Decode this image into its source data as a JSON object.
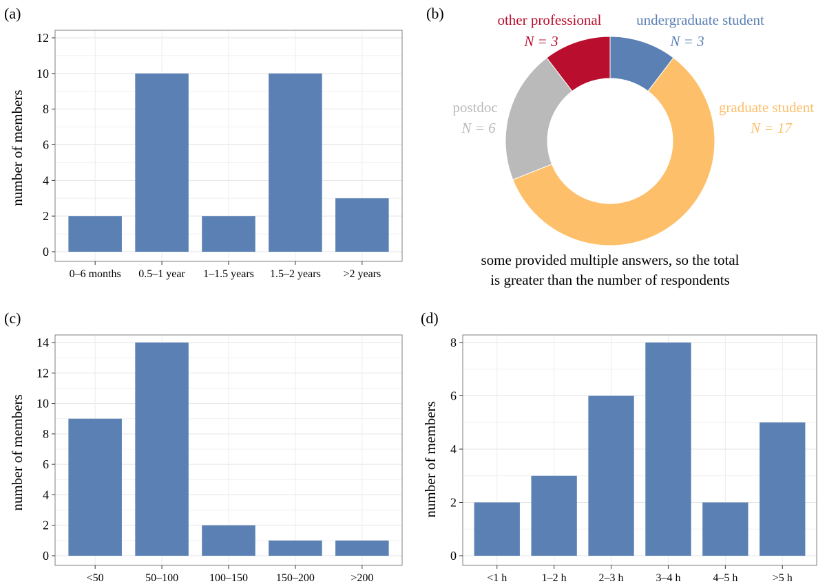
{
  "chart_data": [
    {
      "panel": "(a)",
      "type": "bar",
      "categories": [
        "0–6 months",
        "0.5–1 year",
        "1–1.5 years",
        "1.5–2 years",
        ">2 years"
      ],
      "values": [
        2,
        10,
        2,
        10,
        3
      ],
      "ylabel": "number of members",
      "ylim": [
        0,
        12
      ],
      "yticks": [
        "0",
        "2",
        "4",
        "6",
        "8",
        "10",
        "12"
      ],
      "grid": true,
      "bar_color": "#5b80b4"
    },
    {
      "panel": "(b)",
      "type": "pie",
      "variant": "donut",
      "slices": [
        {
          "label": "undergraduate student",
          "n_text": "N = 3",
          "value": 3,
          "color": "#5b80b4"
        },
        {
          "label": "graduate student",
          "n_text": "N = 17",
          "value": 17,
          "color": "#fdbf6a"
        },
        {
          "label": "postdoc",
          "n_text": "N = 6",
          "value": 6,
          "color": "#bababa"
        },
        {
          "label": "other professional",
          "n_text": "N = 3",
          "value": 3,
          "color": "#b90e2e"
        }
      ],
      "note_lines": [
        "some provided multiple answers, so the total",
        "is greater than the number of respondents"
      ]
    },
    {
      "panel": "(c)",
      "type": "bar",
      "categories": [
        "<50",
        "50–100",
        "100–150",
        "150–200",
        ">200"
      ],
      "values": [
        9,
        14,
        2,
        1,
        1
      ],
      "ylabel": "number of members",
      "ylim": [
        0,
        14
      ],
      "yticks": [
        "0",
        "2",
        "4",
        "6",
        "8",
        "10",
        "12",
        "14"
      ],
      "grid": true,
      "bar_color": "#5b80b4"
    },
    {
      "panel": "(d)",
      "type": "bar",
      "categories": [
        "<1 h",
        "1–2 h",
        "2–3 h",
        "3–4 h",
        "4–5 h",
        ">5 h"
      ],
      "values": [
        2,
        3,
        6,
        8,
        2,
        5
      ],
      "ylabel": "number of members",
      "ylim": [
        0,
        8
      ],
      "yticks": [
        "0",
        "2",
        "4",
        "6",
        "8"
      ],
      "grid": true,
      "bar_color": "#5b80b4"
    }
  ]
}
